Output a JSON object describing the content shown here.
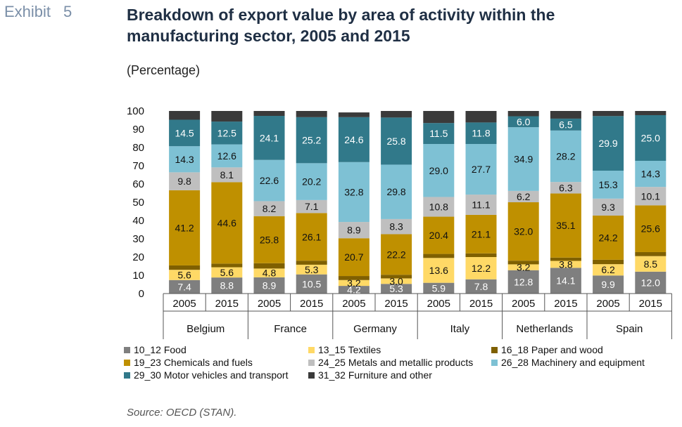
{
  "header": {
    "exhibit_label": "Exhibit",
    "exhibit_number": "5",
    "title": "Breakdown of export value by area of activity within the manufacturing sector, 2005 and 2015",
    "subtitle": "(Percentage)"
  },
  "source": "Source: OECD (STAN).",
  "colors": {
    "food": "#7f7f7f",
    "textiles": "#ffd966",
    "paper": "#7f6000",
    "chemicals": "#bf9000",
    "metals": "#bfbfbf",
    "machinery": "#7ec1d4",
    "motor": "#31798a",
    "furniture": "#3a3a3a"
  },
  "chart_data": {
    "type": "bar",
    "stacked": true,
    "ylim": [
      0,
      100
    ],
    "yticks": [
      0,
      10,
      20,
      30,
      40,
      50,
      60,
      70,
      80,
      90,
      100
    ],
    "grid": false,
    "legend_placement": "bottom",
    "groups": [
      "Belgium",
      "France",
      "Germany",
      "Italy",
      "Netherlands",
      "Spain"
    ],
    "years": [
      "2005",
      "2015"
    ],
    "series": [
      {
        "key": "food",
        "name": "10_12 Food",
        "values": [
          7.4,
          8.8,
          8.9,
          10.5,
          4.2,
          5.3,
          5.9,
          7.8,
          12.8,
          14.1,
          9.9,
          12.0
        ],
        "labels": [
          "7.4",
          "8.8",
          "8.9",
          "10.5",
          "4.2",
          "5.3",
          "5.9",
          "7.8",
          "12.8",
          "14.1",
          "9.9",
          "12.0"
        ]
      },
      {
        "key": "textiles",
        "name": "13_15 Textiles",
        "values": [
          5.6,
          5.6,
          4.8,
          5.3,
          3.2,
          3.0,
          13.6,
          12.2,
          3.2,
          3.8,
          6.2,
          8.5
        ],
        "labels": [
          "5.6",
          "5.6",
          "4.8",
          "5.3",
          "3.2",
          "3.0",
          "13.6",
          "12.2",
          "3.2",
          "3.8",
          "6.2",
          "8.5"
        ]
      },
      {
        "key": "paper",
        "name": "16_18 Paper and wood",
        "values": [
          2.4,
          2.0,
          2.9,
          2.2,
          2.2,
          2.0,
          2.2,
          2.0,
          2.0,
          1.8,
          2.4,
          2.2
        ],
        "labels": [
          "",
          "",
          "",
          "",
          "",
          "",
          "",
          "",
          "",
          "",
          "",
          ""
        ]
      },
      {
        "key": "chemicals",
        "name": "19_23 Chemicals and fuels",
        "values": [
          41.2,
          44.6,
          25.8,
          26.1,
          20.7,
          22.2,
          20.4,
          21.1,
          32.0,
          35.1,
          24.2,
          25.6
        ],
        "labels": [
          "41.2",
          "44.6",
          "25.8",
          "26.1",
          "20.7",
          "22.2",
          "20.4",
          "21.1",
          "32.0",
          "35.1",
          "24.2",
          "25.6"
        ]
      },
      {
        "key": "metals",
        "name": "24_25 Metals and metallic products",
        "values": [
          9.8,
          8.1,
          8.2,
          7.1,
          8.9,
          8.3,
          10.8,
          11.1,
          6.2,
          6.3,
          9.3,
          10.1
        ],
        "labels": [
          "9.8",
          "8.1",
          "8.2",
          "7.1",
          "8.9",
          "8.3",
          "10.8",
          "11.1",
          "6.2",
          "6.3",
          "9.3",
          "10.1"
        ]
      },
      {
        "key": "machinery",
        "name": "26_28 Machinery and equipment",
        "values": [
          14.3,
          12.6,
          22.6,
          20.2,
          32.8,
          29.8,
          29.0,
          27.7,
          34.9,
          28.2,
          15.3,
          14.3
        ],
        "labels": [
          "14.3",
          "12.6",
          "22.6",
          "20.2",
          "32.8",
          "29.8",
          "29.0",
          "27.7",
          "34.9",
          "28.2",
          "15.3",
          "14.3"
        ]
      },
      {
        "key": "motor",
        "name": "29_30 Motor vehicles and transport",
        "values": [
          14.5,
          12.5,
          24.1,
          25.2,
          24.6,
          25.8,
          11.5,
          11.8,
          6.0,
          6.5,
          29.9,
          25.0
        ],
        "labels": [
          "14.5",
          "12.5",
          "24.1",
          "25.2",
          "24.6",
          "25.8",
          "11.5",
          "11.8",
          "6.0",
          "6.5",
          "29.9",
          "25.0"
        ]
      },
      {
        "key": "furniture",
        "name": "31_32 Furniture and other",
        "values": [
          4.8,
          5.8,
          2.7,
          3.4,
          2.6,
          3.6,
          6.6,
          6.3,
          2.9,
          4.2,
          2.8,
          2.3
        ],
        "labels": [
          "",
          "",
          "",
          "",
          "",
          "",
          "",
          "",
          "",
          "",
          "",
          ""
        ]
      }
    ]
  }
}
